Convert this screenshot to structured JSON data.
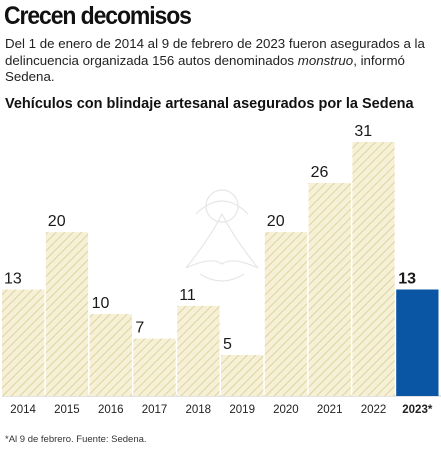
{
  "header": {
    "headline": "Crecen decomisos",
    "intro_before": "Del 1 de enero de 2014 al 9 de febrero de 2023 fueron asegurados a la delincuencia organizada 156 autos denominados ",
    "intro_italic": "monstruo",
    "intro_after": ", informó Sedena.",
    "subtitle": "Vehículos con blindaje artesanal asegurados por la Sedena"
  },
  "footnote": "*Al 9 de febrero. Fuente: Sedena.",
  "colors": {
    "bar_hatch_fill": "#f6f1d6",
    "bar_hatch_line": "#ddd3a0",
    "highlight_bar": "#0b56a4",
    "axis_line": "#c8c8c8"
  },
  "chart_data": {
    "type": "bar",
    "title": "Vehículos con blindaje artesanal asegurados por la Sedena",
    "categories": [
      "2014",
      "2015",
      "2016",
      "2017",
      "2018",
      "2019",
      "2020",
      "2021",
      "2022",
      "2023*"
    ],
    "values": [
      13,
      20,
      10,
      7,
      11,
      5,
      20,
      26,
      31,
      13
    ],
    "data_labels": [
      "13",
      "20",
      "10",
      "7",
      "11",
      "5",
      "20",
      "26",
      "31",
      "13"
    ],
    "highlight_index": 9,
    "ylim": [
      0,
      31
    ],
    "grid": false,
    "xlabel": "",
    "ylabel": ""
  }
}
